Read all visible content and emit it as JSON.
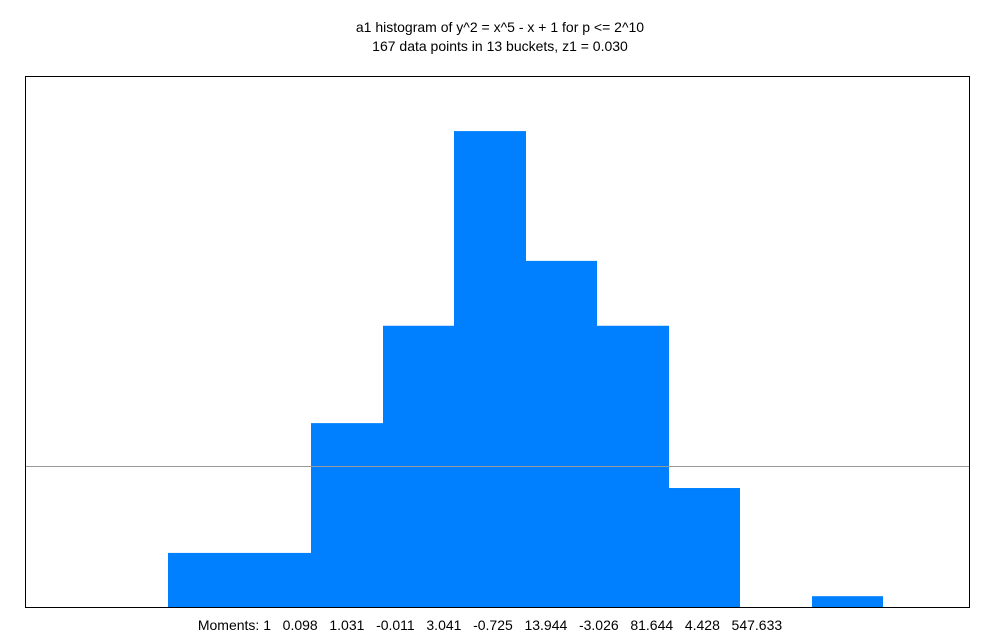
{
  "chart_data": {
    "type": "bar",
    "title": "a1 histogram of y^2 = x^5 - x + 1 for p <= 2^10",
    "subtitle": "167 data points in 13 buckets, z1 = 0.030",
    "buckets": 13,
    "values": [
      0,
      0,
      5,
      5,
      17,
      26,
      44,
      32,
      26,
      11,
      0,
      1,
      0
    ],
    "reference_line": 13,
    "ylim": [
      0,
      49
    ],
    "bar_color": "#0080ff",
    "moments_label": "Moments:",
    "moments": [
      "1",
      "0.098",
      "1.031",
      "-0.011",
      "3.041",
      "-0.725",
      "13.944",
      "-3.026",
      "81.644",
      "4.428",
      "547.633"
    ]
  }
}
